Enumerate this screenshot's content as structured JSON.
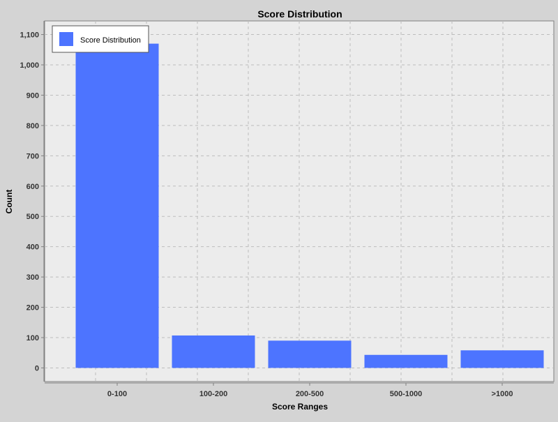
{
  "chart_data": {
    "type": "bar",
    "title": "Score Distribution",
    "xlabel": "Score Ranges",
    "ylabel": "Count",
    "categories": [
      "0-100",
      "100-200",
      "200-500",
      "500-1000",
      ">1000"
    ],
    "series": [
      {
        "name": "Score Distribution",
        "values": [
          1070,
          107,
          90,
          43,
          58
        ],
        "color": "#4d74ff"
      }
    ],
    "yticks": [
      0,
      100,
      200,
      300,
      400,
      500,
      600,
      700,
      800,
      900,
      1000,
      1100
    ],
    "ytick_labels": [
      "0",
      "100",
      "200",
      "300",
      "400",
      "500",
      "600",
      "700",
      "800",
      "900",
      "1,000",
      "1,100"
    ],
    "ylim": [
      -45,
      1145
    ],
    "grid": true,
    "legend_position": "top-left"
  }
}
